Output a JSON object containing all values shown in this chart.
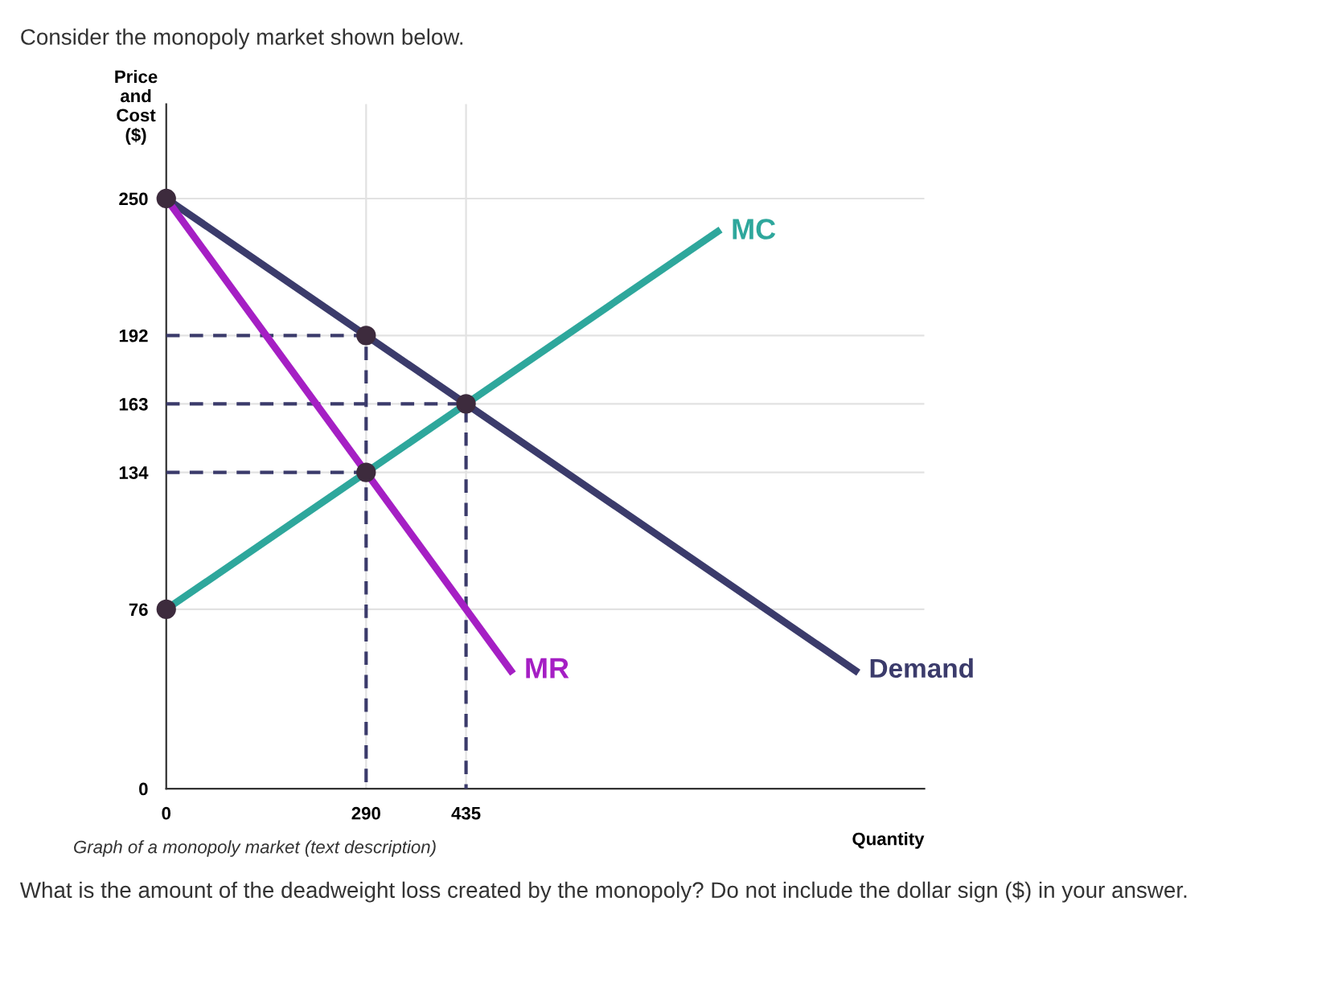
{
  "chart_data": {
    "type": "line",
    "title": "Consider the monopoly market shown below.",
    "xlabel": "Quantity",
    "ylabel": "Price\nand\nCost\n($)",
    "xlim": [
      0,
      1100
    ],
    "ylim": [
      0,
      290
    ],
    "xticks": [
      0,
      290,
      435
    ],
    "yticks": [
      0,
      76,
      134,
      163,
      192,
      250
    ],
    "grid": true,
    "legend": false,
    "series": [
      {
        "name": "Demand",
        "color": "#3b3b6b",
        "x": [
          0,
          1000
        ],
        "values": [
          250,
          50
        ]
      },
      {
        "name": "MR",
        "color": "#a51fc4",
        "x": [
          0,
          500
        ],
        "values": [
          250,
          50
        ]
      },
      {
        "name": "MC",
        "color": "#2ea79c",
        "x": [
          0,
          800
        ],
        "values": [
          76,
          236
        ]
      },
      {
        "color": "#3b3b6b",
        "line_style": "dashed",
        "x": [
          0,
          290,
          290
        ],
        "values": [
          192,
          192,
          0
        ]
      },
      {
        "color": "#3b3b6b",
        "line_style": "dashed",
        "x": [
          0,
          435,
          435
        ],
        "values": [
          163,
          163,
          0
        ]
      },
      {
        "color": "#3b3b6b",
        "line_style": "dashed",
        "x": [
          0,
          290
        ],
        "values": [
          134,
          134
        ]
      },
      {
        "type": "scatter",
        "color": "#3d2b3d",
        "x": [
          0,
          290,
          435,
          290,
          0
        ],
        "values": [
          250,
          192,
          163,
          134,
          76
        ]
      }
    ],
    "annotations": [
      "Graph of a monopoly market (text description)",
      "What is the amount of the deadweight loss created by the monopoly? Do not include the dollar sign ($) in your answer."
    ]
  }
}
